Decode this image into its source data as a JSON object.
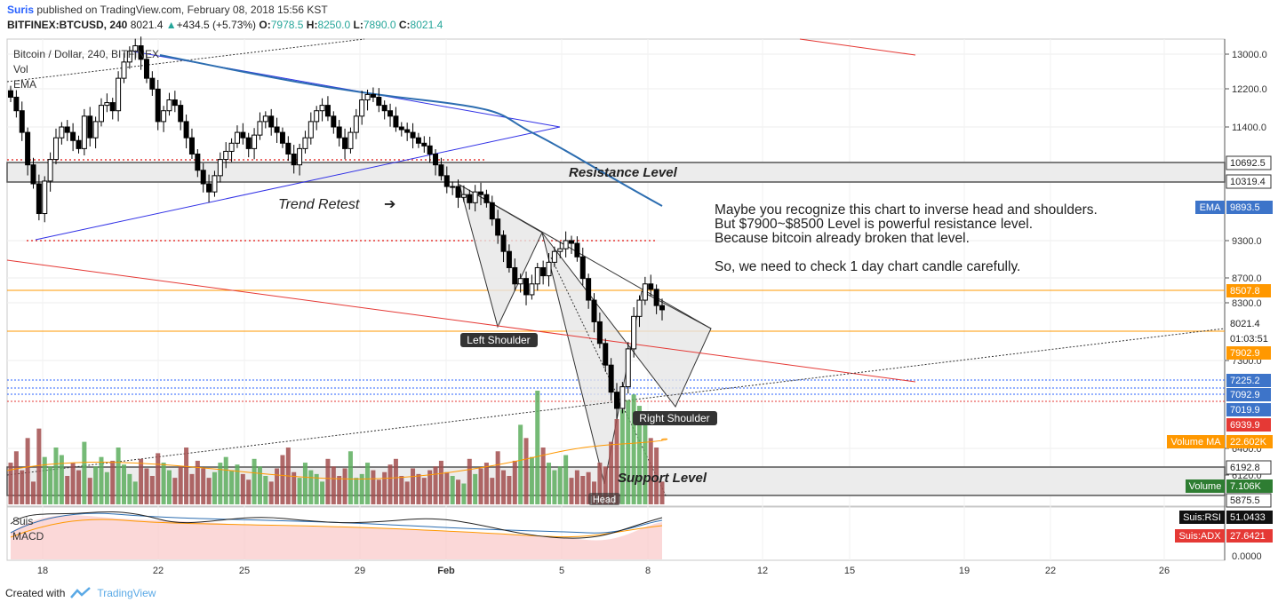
{
  "header": {
    "author": "Suris",
    "published_on": " published on TradingView.com, February 08, 2018 15:56 KST",
    "symbol": "BITFINEX:BTCUSD, 240",
    "last": "8021.4",
    "change_arrow": "▲",
    "change": "+434.5 (+5.73%)",
    "o_label": "O:",
    "o_value": "7978.5",
    "h_label": "H:",
    "h_value": "8250.0",
    "l_label": "L:",
    "l_value": "7890.0",
    "c_label": "C:",
    "c_value": "8021.4"
  },
  "legend": {
    "title": "Bitcoin / Dollar, 240, BITFINEX",
    "vol": "Vol",
    "ema": "EMA",
    "rsi_pane": "Suis",
    "macd": "MACD"
  },
  "annotations": {
    "resistance": "Resistance Level",
    "support": "Support Level",
    "trend_retest": "Trend Retest",
    "trend_arrow": "➔",
    "left_shoulder": "Left Shoulder",
    "right_shoulder": "Right Shoulder",
    "head": "Head",
    "note_lines": [
      "Maybe you recognize this chart to inverse head and shoulders.",
      "But $7900~$8500 Level is powerful resistance level.",
      "Because bitcoin already broken that level.",
      "",
      "So, we need to check 1 day chart candle carefully."
    ]
  },
  "colors": {
    "up": "#000000",
    "down": "#000000",
    "ema": "#2c6db0",
    "trendline": "#3232e6",
    "red_line": "#e53935",
    "orange_line": "#ff9800",
    "vol_up": "#5dae5e",
    "vol_down": "#a24d4d",
    "rsi_fill": "#f9c7c7"
  },
  "chart_data": {
    "type": "candlestick",
    "title": "Bitcoin / Dollar, 240, BITFINEX",
    "y_ticks": [
      "13000.0",
      "12200.0",
      "11400.0",
      "9300.0",
      "8700.0",
      "8300.0",
      "7300.0",
      "6400.0",
      "6120.0"
    ],
    "x_ticks": [
      "18",
      "22",
      "25",
      "29",
      "Feb",
      "5",
      "8",
      "12",
      "15",
      "19",
      "22",
      "26"
    ],
    "price_scale": [
      9300,
      11400
    ],
    "closes": [
      11950,
      11700,
      11300,
      10700,
      10350,
      9800,
      10400,
      10800,
      11200,
      11400,
      11300,
      11150,
      11000,
      11600,
      11200,
      11500,
      11800,
      11850,
      11700,
      12300,
      12600,
      12800,
      12900,
      12650,
      12300,
      12100,
      11500,
      11700,
      11900,
      11800,
      11500,
      11200,
      10900,
      10600,
      10350,
      10200,
      10500,
      10800,
      10950,
      11100,
      11300,
      11200,
      11000,
      11250,
      11500,
      11600,
      11400,
      11300,
      11100,
      10900,
      10700,
      11000,
      11200,
      11500,
      11700,
      11800,
      11600,
      11400,
      11200,
      11000,
      11300,
      11600,
      11900,
      12000,
      11950,
      11800,
      11700,
      11600,
      11400,
      11350,
      11300,
      11200,
      11100,
      11050,
      10900,
      10700,
      10500,
      10300,
      10300,
      10100,
      10150,
      10000,
      10200,
      10150,
      10000,
      9700,
      9400,
      9100,
      8800,
      8500,
      8600,
      8300,
      8500,
      8800,
      8650,
      8900,
      9100,
      9150,
      9300,
      9250,
      9000,
      8600,
      8200,
      7800,
      7400,
      7000,
      6500,
      6200,
      6600,
      7300,
      7900,
      8200,
      8500,
      8400,
      8100,
      8021.4
    ],
    "price_labels": [
      {
        "label": "10692.5",
        "value": 10692.5
      },
      {
        "label": "10319.4",
        "value": 10319.4
      },
      {
        "label": "9893.5",
        "value": 9893.5
      },
      {
        "label": "8507.8",
        "value": 8507.8
      },
      {
        "label": "8021.4",
        "value": 8021.4
      },
      {
        "label": "01:03:51",
        "value": 7750
      },
      {
        "label": "7902.9",
        "value": 7902.9
      },
      {
        "label": "7225.2",
        "value": 7225.2
      },
      {
        "label": "7092.9",
        "value": 7092.9
      },
      {
        "label": "7019.9",
        "value": 7019.9
      },
      {
        "label": "6939.9",
        "value": 6939.9
      },
      {
        "label": "6192.8",
        "value": 6192.8
      },
      {
        "label": "5875.5",
        "value": 5875.5
      }
    ],
    "indicator_labels": [
      {
        "name": "EMA",
        "value": "9893.5"
      },
      {
        "name": "Volume MA",
        "value": "22.602K"
      },
      {
        "name": "Volume",
        "value": "7.106K"
      },
      {
        "name": "Suis:RSI",
        "value": "51.0433"
      },
      {
        "name": "Suis:ADX",
        "value": "27.6421"
      }
    ],
    "macd_ticks": [
      "0.0000"
    ],
    "volumes_k": [
      22,
      28,
      18,
      35,
      12,
      40,
      25,
      20,
      30,
      26,
      15,
      22,
      18,
      33,
      14,
      20,
      25,
      17,
      23,
      30,
      21,
      16,
      12,
      24,
      19,
      15,
      27,
      22,
      18,
      14,
      20,
      30,
      16,
      23,
      19,
      14,
      17,
      22,
      25,
      18,
      21,
      16,
      13,
      24,
      20,
      15,
      12,
      19,
      26,
      30,
      17,
      14,
      22,
      18,
      16,
      12,
      24,
      20,
      15,
      19,
      28,
      14,
      16,
      22,
      18,
      13,
      17,
      21,
      24,
      15,
      12,
      19,
      16,
      14,
      18,
      20,
      23,
      17,
      15,
      13,
      11,
      24,
      16,
      19,
      22,
      14,
      28,
      18,
      15,
      23,
      42,
      35,
      25,
      60,
      30,
      22,
      18,
      20,
      26,
      14,
      18,
      15,
      17,
      12,
      22,
      20,
      33,
      45,
      50,
      55,
      58,
      52,
      48,
      35,
      30,
      12
    ]
  }
}
